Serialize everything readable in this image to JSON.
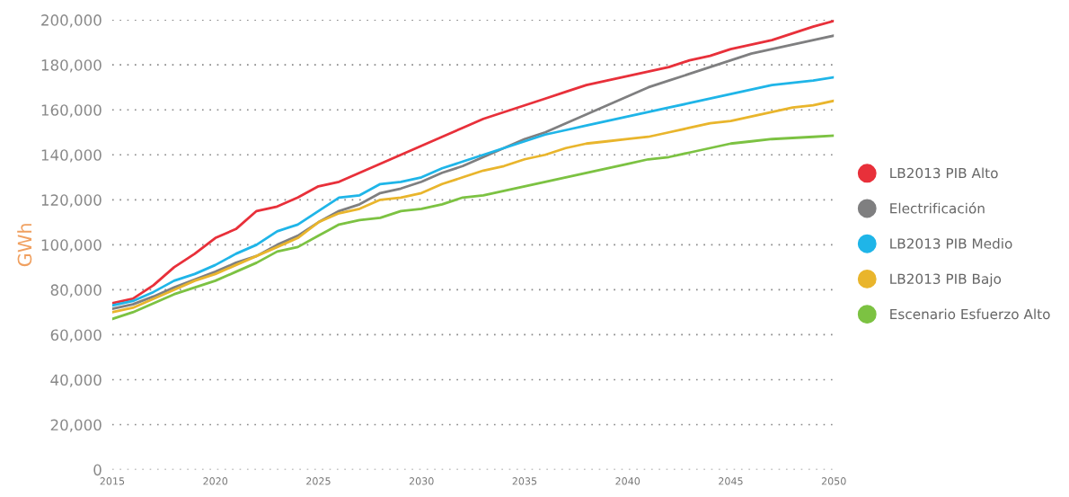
{
  "chart_data": {
    "type": "line",
    "ylabel": "GWh",
    "x": [
      2015,
      2016,
      2017,
      2018,
      2019,
      2020,
      2021,
      2022,
      2023,
      2024,
      2025,
      2026,
      2027,
      2028,
      2029,
      2030,
      2031,
      2032,
      2033,
      2034,
      2035,
      2036,
      2037,
      2038,
      2039,
      2040,
      2041,
      2042,
      2043,
      2044,
      2045,
      2046,
      2047,
      2048,
      2049,
      2050
    ],
    "xlim": [
      2015,
      2050
    ],
    "xticks": [
      2015,
      2020,
      2025,
      2030,
      2035,
      2040,
      2045,
      2050
    ],
    "ylim": [
      0,
      200000
    ],
    "yticks": [
      {
        "value": 0,
        "label": "0"
      },
      {
        "value": 20000,
        "label": "20,000"
      },
      {
        "value": 40000,
        "label": "40,000"
      },
      {
        "value": 60000,
        "label": "60,000"
      },
      {
        "value": 80000,
        "label": "80,000"
      },
      {
        "value": 100000,
        "label": "100,000"
      },
      {
        "value": 120000,
        "label": "120,000"
      },
      {
        "value": 140000,
        "label": "140,000"
      },
      {
        "value": 160000,
        "label": "160,000"
      },
      {
        "value": 180000,
        "label": "180,000"
      },
      {
        "value": 200000,
        "label": "200,000"
      }
    ],
    "grid": "y",
    "legend": "right",
    "marker": "none",
    "line_style": "solid",
    "series": [
      {
        "name": "LB2013 PIB Alto",
        "color": "#e8303a",
        "values": [
          74000,
          76000,
          82000,
          90000,
          96000,
          103000,
          107000,
          115000,
          117000,
          121000,
          126000,
          128000,
          132000,
          136000,
          140000,
          144000,
          148000,
          152000,
          156000,
          159000,
          162000,
          165000,
          168000,
          171000,
          173000,
          175000,
          177000,
          179000,
          182000,
          184000,
          187000,
          189000,
          191000,
          194000,
          197000,
          199500
        ]
      },
      {
        "name": "Electrificación",
        "color": "#7f7f80",
        "values": [
          71500,
          73500,
          77000,
          81000,
          84500,
          88000,
          92000,
          95000,
          100000,
          104000,
          110000,
          115000,
          118000,
          123000,
          125000,
          128000,
          132000,
          135000,
          139000,
          143000,
          147000,
          150000,
          154000,
          158000,
          162000,
          166000,
          170000,
          173000,
          176000,
          179000,
          182000,
          185000,
          187000,
          189000,
          191000,
          193000
        ]
      },
      {
        "name": "LB2013 PIB Medio",
        "color": "#1fb5e8",
        "values": [
          73000,
          75000,
          79000,
          84000,
          87000,
          91000,
          96000,
          100000,
          106000,
          109000,
          115000,
          121000,
          122000,
          127000,
          128000,
          130000,
          134000,
          137000,
          140000,
          143000,
          146000,
          149000,
          151000,
          153000,
          155000,
          157000,
          159000,
          161000,
          163000,
          165000,
          167000,
          169000,
          171000,
          172000,
          173000,
          174500
        ]
      },
      {
        "name": "LB2013 PIB Bajo",
        "color": "#e9b52c",
        "values": [
          70000,
          72000,
          76000,
          80000,
          84000,
          87000,
          91000,
          95000,
          99000,
          103000,
          110000,
          114000,
          116000,
          120000,
          121000,
          123000,
          127000,
          130000,
          133000,
          135000,
          138000,
          140000,
          143000,
          145000,
          146000,
          147000,
          148000,
          150000,
          152000,
          154000,
          155000,
          157000,
          159000,
          161000,
          162000,
          164000
        ]
      },
      {
        "name": "Escenario Esfuerzo Alto",
        "color": "#7cc242",
        "values": [
          67000,
          70000,
          74000,
          78000,
          81000,
          84000,
          88000,
          92000,
          97000,
          99000,
          104000,
          109000,
          111000,
          112000,
          115000,
          116000,
          118000,
          121000,
          122000,
          124000,
          126000,
          128000,
          130000,
          132000,
          134000,
          136000,
          138000,
          139000,
          141000,
          143000,
          145000,
          146000,
          147000,
          147500,
          148000,
          148500
        ]
      }
    ]
  }
}
